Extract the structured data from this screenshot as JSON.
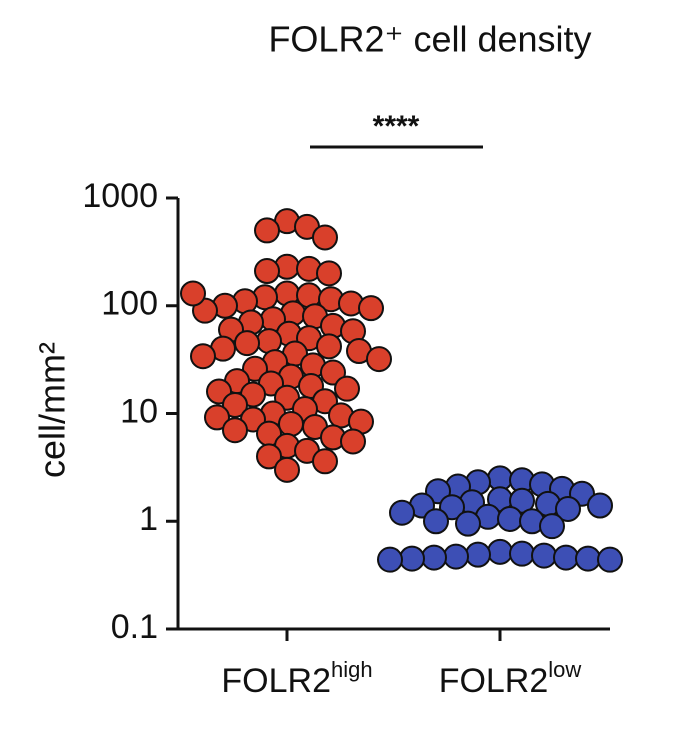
{
  "chart_data": {
    "type": "strip",
    "title": "FOLR2⁺ cell density",
    "ylabel": "cell/mm²",
    "significance": "****",
    "categories": [
      {
        "text": "FOLR2",
        "superscript": "high"
      },
      {
        "text": "FOLR2",
        "superscript": "low"
      }
    ],
    "log_scale": true,
    "ylim": [
      0.1,
      1000
    ],
    "yticks": [
      1000,
      100,
      10,
      1,
      0.1
    ],
    "series": [
      {
        "color": "#d9402b",
        "values": [
          610,
          540,
          500,
          430,
          230,
          220,
          210,
          200,
          130,
          125,
          120,
          115,
          110,
          105,
          100,
          95,
          90,
          130,
          85,
          80,
          75,
          70,
          65,
          60,
          58,
          55,
          50,
          47,
          45,
          42,
          40,
          38,
          36,
          34,
          32,
          30,
          28,
          26,
          24,
          22,
          20,
          19,
          18,
          17,
          16,
          15,
          14,
          13,
          12,
          11,
          10,
          9.6,
          9.2,
          8.8,
          8.4,
          8,
          7.5,
          7,
          6.5,
          6,
          5.5,
          5,
          4.5,
          4,
          3.6,
          3
        ]
      },
      {
        "color": "#3d4fb5",
        "values": [
          2.5,
          2.4,
          2.3,
          2.2,
          2.1,
          2,
          1.9,
          1.8,
          1.6,
          1.55,
          1.5,
          1.45,
          1.4,
          1.4,
          1.35,
          1.3,
          1.2,
          1.1,
          1.05,
          1,
          1,
          0.95,
          0.9,
          0.52,
          0.5,
          0.49,
          0.48,
          0.47,
          0.46,
          0.46,
          0.45,
          0.45,
          0.44,
          0.44
        ]
      }
    ]
  }
}
